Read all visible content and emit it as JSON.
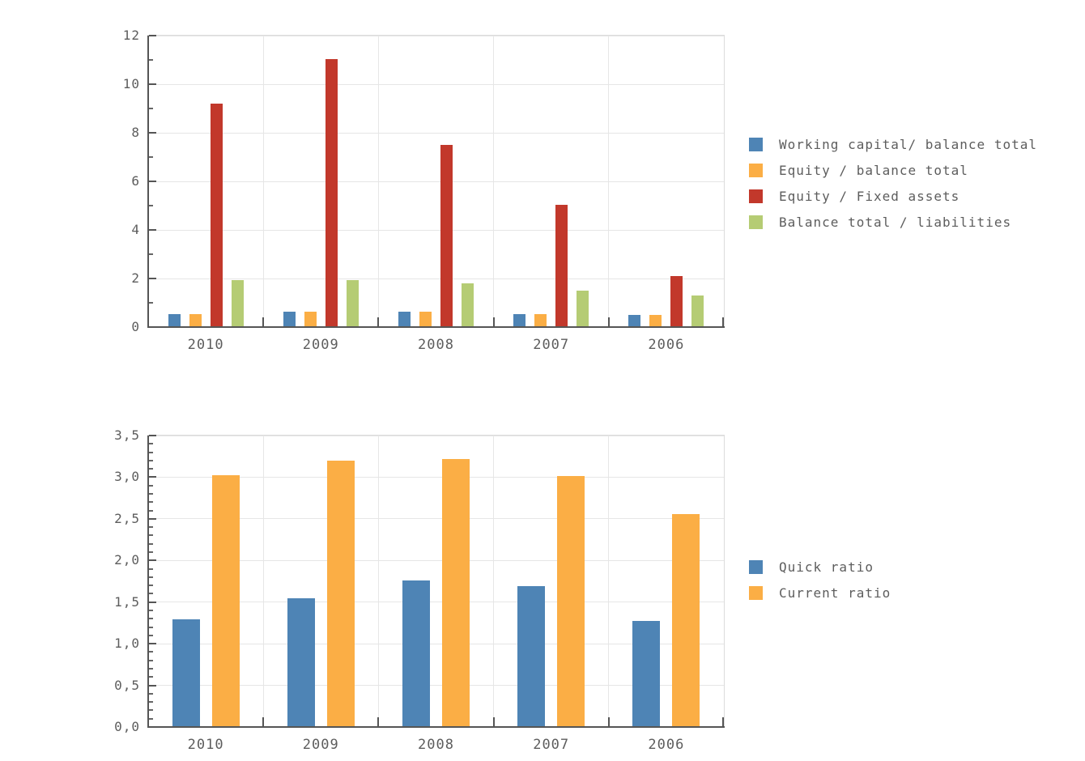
{
  "page": {
    "background": "#ffffff",
    "text_color": "#5d5d5d",
    "gridline_color": "#e6e6e6",
    "axis_color": "#555555",
    "plot_border_color": "#dcdcdc"
  },
  "chart_data": [
    {
      "type": "bar",
      "title": "",
      "xlabel": "",
      "ylabel": "",
      "categories": [
        "2010",
        "2009",
        "2008",
        "2007",
        "2006"
      ],
      "series": [
        {
          "name": "Working capital/ balance total",
          "color": "#4E84B5",
          "values": [
            0.55,
            0.63,
            0.62,
            0.55,
            0.5
          ]
        },
        {
          "name": "Equity / balance total",
          "color": "#FBAE45",
          "values": [
            0.55,
            0.63,
            0.62,
            0.55,
            0.5
          ]
        },
        {
          "name": "Equity / Fixed assets",
          "color": "#C2382B",
          "values": [
            9.2,
            11.05,
            7.5,
            5.05,
            2.1
          ]
        },
        {
          "name": "Balance total / liabilities",
          "color": "#B5CC74",
          "values": [
            1.95,
            1.95,
            1.8,
            1.5,
            1.3
          ]
        }
      ],
      "ylim": [
        0,
        12
      ],
      "ytick_step": 2,
      "ytick_labels": [
        "0",
        "2",
        "4",
        "6",
        "8",
        "10",
        "12"
      ],
      "minor_ticks_per_major": 1,
      "grid": true,
      "legend_position": "right"
    },
    {
      "type": "bar",
      "title": "",
      "xlabel": "",
      "ylabel": "",
      "categories": [
        "2010",
        "2009",
        "2008",
        "2007",
        "2006"
      ],
      "series": [
        {
          "name": "Quick ratio",
          "color": "#4E84B5",
          "values": [
            1.29,
            1.55,
            1.76,
            1.69,
            1.27
          ]
        },
        {
          "name": "Current ratio",
          "color": "#FBAE45",
          "values": [
            3.02,
            3.2,
            3.22,
            3.01,
            2.56
          ]
        }
      ],
      "ylim": [
        0,
        3.5
      ],
      "ytick_step": 0.5,
      "ytick_labels": [
        "0,0",
        "0,5",
        "1,0",
        "1,5",
        "2,0",
        "2,5",
        "3,0",
        "3,5"
      ],
      "minor_ticks_per_major": 4,
      "grid": true,
      "legend_position": "right"
    }
  ]
}
